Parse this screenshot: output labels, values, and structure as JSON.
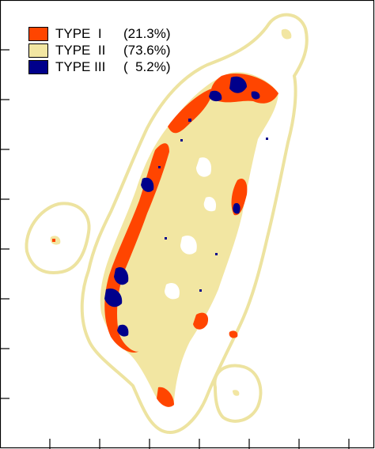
{
  "colors": {
    "type_i": "#FF4500",
    "type_ii": "#F2E6A2",
    "type_iii": "#00008B",
    "buffer": "#EDE3A0",
    "frame": "#000000"
  },
  "legend": [
    {
      "name": "TYPE  I",
      "pct": "(21.3%)",
      "color": "#FF4500"
    },
    {
      "name": "TYPE  II",
      "pct": "(73.6%)",
      "color": "#F2E6A2"
    },
    {
      "name": "TYPE III",
      "pct": "(  5.2%)",
      "color": "#00008B"
    }
  ]
}
